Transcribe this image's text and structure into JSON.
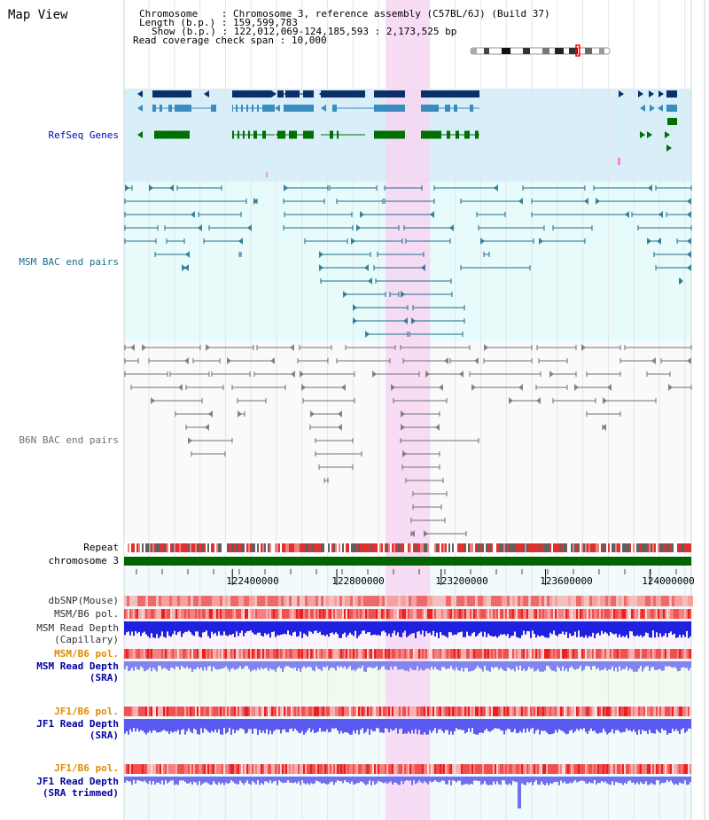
{
  "title": "Map View",
  "info": {
    "chromosome_label": "Chromosome",
    "chromosome_value": "Chromosome 3, reference assembly (C57BL/6J) (Build 37)",
    "length_label": "Length (b.p.)",
    "length_value": "159,599,783",
    "show_label": "Show (b.p.)",
    "show_value": "122,012,069-124,185,593 : 2,173,525 bp",
    "coverage_label": "Read coverage check span",
    "coverage_value": "10,000"
  },
  "tracks": {
    "refseq": "RefSeq Genes",
    "msm_bac": "MSM BAC end pairs",
    "b6n_bac": "B6N BAC end pairs",
    "repeat": "Repeat",
    "chromosome": "chromosome 3",
    "dbsnp": "dbSNP(Mouse)",
    "msm_b6_pol_1": "MSM/B6 pol.",
    "msm_depth_cap_1": "MSM Read Depth",
    "msm_depth_cap_2": "(Capillary)",
    "msm_b6_pol_2": "MSM/B6 pol.",
    "msm_depth_sra_1": "MSM Read Depth",
    "msm_depth_sra_2": "(SRA)",
    "jf1_b6_pol_1": "JF1/B6 pol.",
    "jf1_depth_sra_1": "JF1 Read Depth",
    "jf1_depth_sra_2": "(SRA)",
    "jf1_b6_pol_2": "JF1/B6 pol.",
    "jf1_depth_trim_1": "JF1 Read Depth",
    "jf1_depth_trim_2": "(SRA trimmed)"
  },
  "axis": {
    "ticks": [
      "122400000",
      "122800000",
      "123200000",
      "123600000",
      "124000000"
    ],
    "tick_values": [
      122400000,
      122800000,
      123200000,
      123600000,
      124000000
    ],
    "range_bp": [
      122012069,
      124185593
    ]
  },
  "colors": {
    "refseq_dark": "#0b3068",
    "refseq_mid": "#3a8cc0",
    "refseq_green": "#007000",
    "msm_bac": "#1a6e8a",
    "b6n_bac": "#707070",
    "highlight": "#f7d6f2",
    "chromosome_bar": "#006400",
    "depth_blue": "#3030e0",
    "pol_red": "#f04040",
    "label_blue": "#0000a0",
    "label_orange": "#e08a00"
  }
}
